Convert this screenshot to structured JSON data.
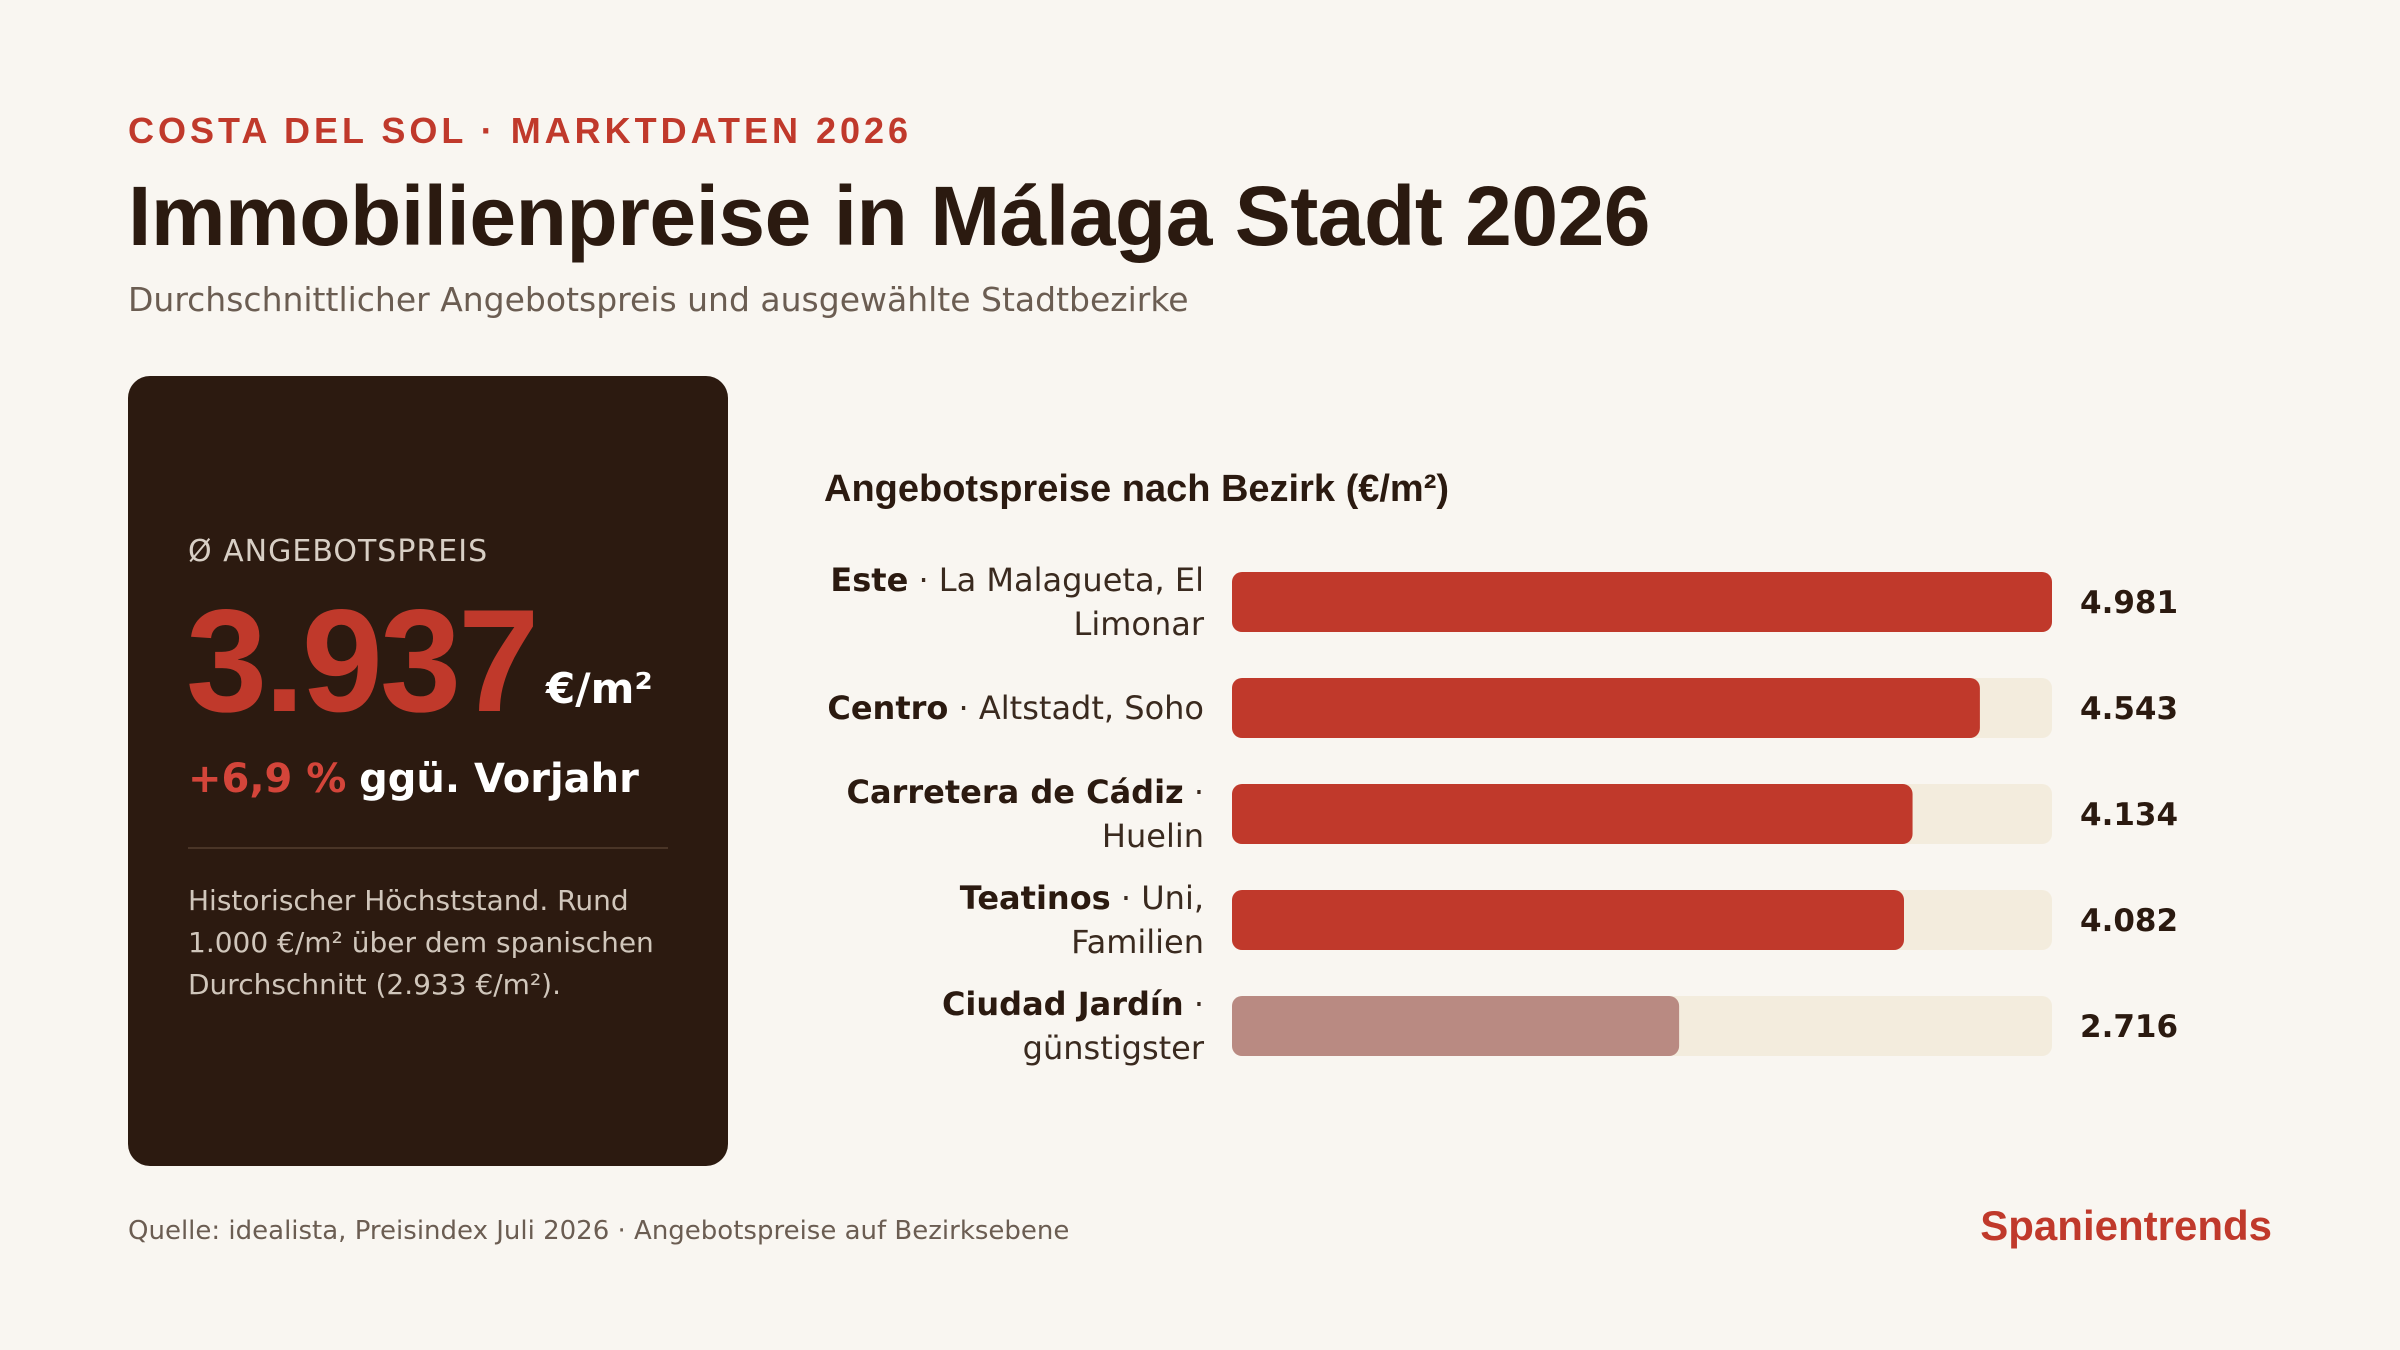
{
  "header": {
    "eyebrow": "COSTA DEL SOL · MARKTDATEN 2026",
    "title": "Immobilienpreise in Málaga Stadt 2026",
    "subtitle": "Durchschnittlicher Angebotspreis und ausgewählte Stadtbezirke"
  },
  "kpi": {
    "label": "Ø ANGEBOTSPREIS",
    "value": "3.937",
    "unit": "€/m²",
    "change_pct": "+6,9 %",
    "change_text": "ggü. Vorjahr",
    "note": "Historischer Höchststand. Rund 1.000 €/m² über dem spanischen Durchschnitt (2.933 €/m²)."
  },
  "chart_data": {
    "type": "bar",
    "orientation": "horizontal",
    "title": "Angebotspreise nach Bezirk (€/m²)",
    "categories": [
      {
        "name": "Este",
        "detail": "La Malagueta, El Limonar"
      },
      {
        "name": "Centro",
        "detail": "Altstadt, Soho"
      },
      {
        "name": "Carretera de Cádiz",
        "detail": "Huelin"
      },
      {
        "name": "Teatinos",
        "detail": "Uni, Familien"
      },
      {
        "name": "Ciudad Jardín",
        "detail": "günstigster"
      }
    ],
    "values": [
      4981,
      4543,
      4134,
      4082,
      2716
    ],
    "value_labels": [
      "4.981",
      "4.543",
      "4.134",
      "4.082",
      "2.716"
    ],
    "xlim": [
      0,
      4981
    ],
    "grid": false,
    "colors": {
      "bar": "#c0392b",
      "bar_lowest": "#b98a82",
      "track": "#f3ecdd"
    }
  },
  "footer": {
    "source": "Quelle: idealista, Preisindex Juli 2026 · Angebotspreise auf Bezirksebene",
    "brand": "Spanientrends"
  }
}
